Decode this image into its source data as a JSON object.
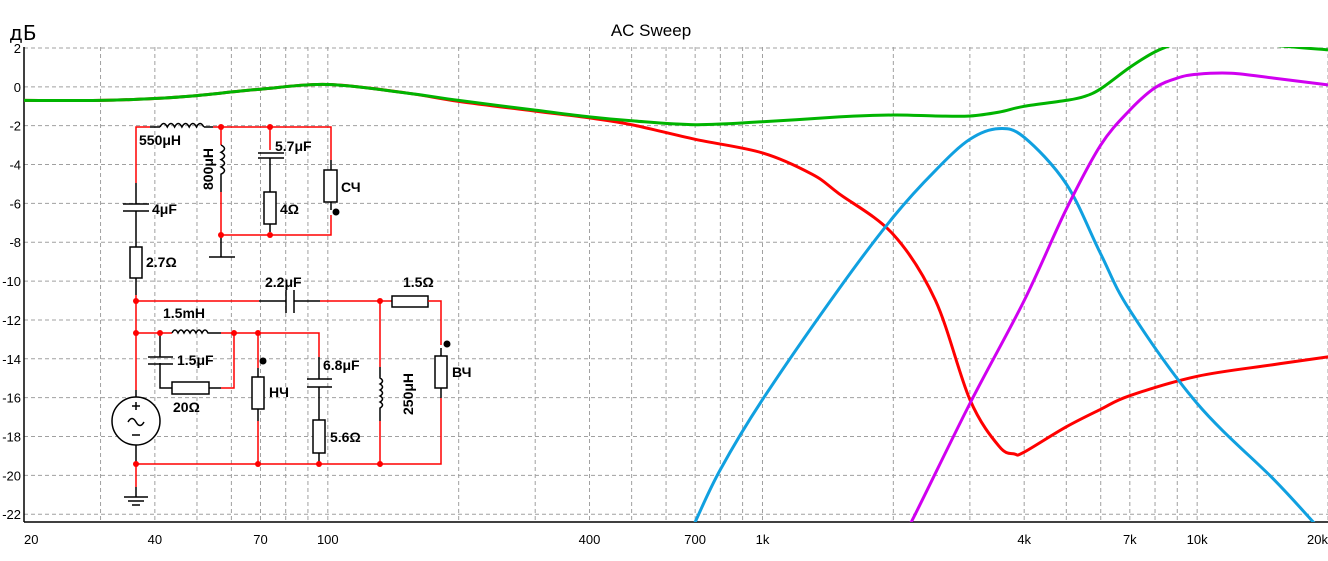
{
  "chart_data": {
    "type": "line",
    "title": "AC Sweep",
    "ylabel": "дБ",
    "xlabel": "",
    "xscale": "log",
    "xlim": [
      20,
      20000
    ],
    "ylim": [
      -22.4,
      2.05
    ],
    "grid": true,
    "x_ticks": [
      20,
      40,
      70,
      100,
      400,
      700,
      1000,
      4000,
      7000,
      10000,
      20000
    ],
    "x_tick_labels": [
      "20",
      "40",
      "70",
      "100",
      "400",
      "700",
      "1k",
      "4k",
      "7k",
      "10k",
      "20k"
    ],
    "x_grid": [
      20,
      30,
      40,
      50,
      60,
      70,
      80,
      90,
      100,
      200,
      300,
      400,
      500,
      600,
      700,
      800,
      900,
      1000,
      2000,
      3000,
      4000,
      5000,
      6000,
      7000,
      8000,
      9000,
      10000,
      20000
    ],
    "y_ticks": [
      2,
      0,
      -2,
      -4,
      -6,
      -8,
      -10,
      -12,
      -14,
      -16,
      -18,
      -20,
      -22
    ],
    "y_tick_labels": [
      "2",
      "0",
      "-2",
      "-4",
      "-6",
      "-8",
      "-10",
      "-12",
      "-14",
      "-16",
      "-18",
      "-20",
      "-22"
    ],
    "series": [
      {
        "color": "#ff0000",
        "x": [
          20,
          30,
          40,
          50,
          70,
          100,
          150,
          200,
          300,
          400,
          500,
          700,
          1000,
          1300,
          1500,
          2000,
          2500,
          3000,
          3500,
          3800,
          4000,
          5000,
          6000,
          7000,
          10000,
          15000,
          20000
        ],
        "y": [
          -0.7,
          -0.7,
          -0.6,
          -0.45,
          -0.12,
          0.12,
          -0.3,
          -0.75,
          -1.25,
          -1.6,
          -1.95,
          -2.7,
          -3.4,
          -4.5,
          -5.5,
          -7.6,
          -11,
          -16.1,
          -18.5,
          -18.9,
          -18.8,
          -17.5,
          -16.6,
          -15.9,
          -14.9,
          -14.3,
          -13.9
        ]
      },
      {
        "color": "#00b400",
        "x": [
          20,
          30,
          40,
          50,
          70,
          100,
          150,
          200,
          300,
          400,
          500,
          700,
          1000,
          1500,
          2000,
          2500,
          3000,
          3500,
          4000,
          5000,
          5500,
          6000,
          7000,
          8000,
          9000,
          10000,
          12000,
          15000,
          20000
        ],
        "y": [
          -0.7,
          -0.7,
          -0.6,
          -0.45,
          -0.12,
          0.12,
          -0.3,
          -0.7,
          -1.2,
          -1.55,
          -1.75,
          -1.95,
          -1.8,
          -1.55,
          -1.45,
          -1.5,
          -1.5,
          -1.3,
          -1.0,
          -0.7,
          -0.5,
          -0.1,
          1.0,
          1.8,
          2.25,
          2.5,
          2.5,
          2.15,
          1.9
        ]
      },
      {
        "color": "#10a0e0",
        "x": [
          650,
          700,
          800,
          1000,
          1500,
          2000,
          2500,
          3000,
          3500,
          4000,
          5000,
          6000,
          7000,
          10000,
          15000,
          18500,
          20000
        ],
        "y": [
          -24,
          -22.4,
          -19.7,
          -16.1,
          -10.4,
          -6.7,
          -4.3,
          -2.7,
          -2.15,
          -2.6,
          -5.0,
          -8.6,
          -11.5,
          -16.3,
          -20.2,
          -22.4,
          -23.2
        ]
      },
      {
        "color": "#d000f0",
        "x": [
          2000,
          2200,
          3000,
          4000,
          5000,
          6000,
          7000,
          8000,
          9000,
          10000,
          12000,
          15000,
          20000
        ],
        "y": [
          -24,
          -22.4,
          -16.3,
          -11,
          -6.3,
          -3.0,
          -1.2,
          -0.05,
          0.45,
          0.65,
          0.7,
          0.45,
          0.1
        ]
      }
    ]
  },
  "circuit": {
    "labels": {
      "l1": "550μH",
      "l2": "800μH",
      "c1": "5.7μF",
      "r1": "4Ω",
      "spk_mid": "СЧ",
      "c2": "4μF",
      "r2": "2.7Ω",
      "c3": "2.2μF",
      "r3": "1.5Ω",
      "l3": "1.5mH",
      "c4": "1.5μF",
      "r4": "20Ω",
      "spk_low": "НЧ",
      "c5": "6.8μF",
      "r5": "5.6Ω",
      "l4": "250μH",
      "spk_high": "ВЧ"
    }
  }
}
